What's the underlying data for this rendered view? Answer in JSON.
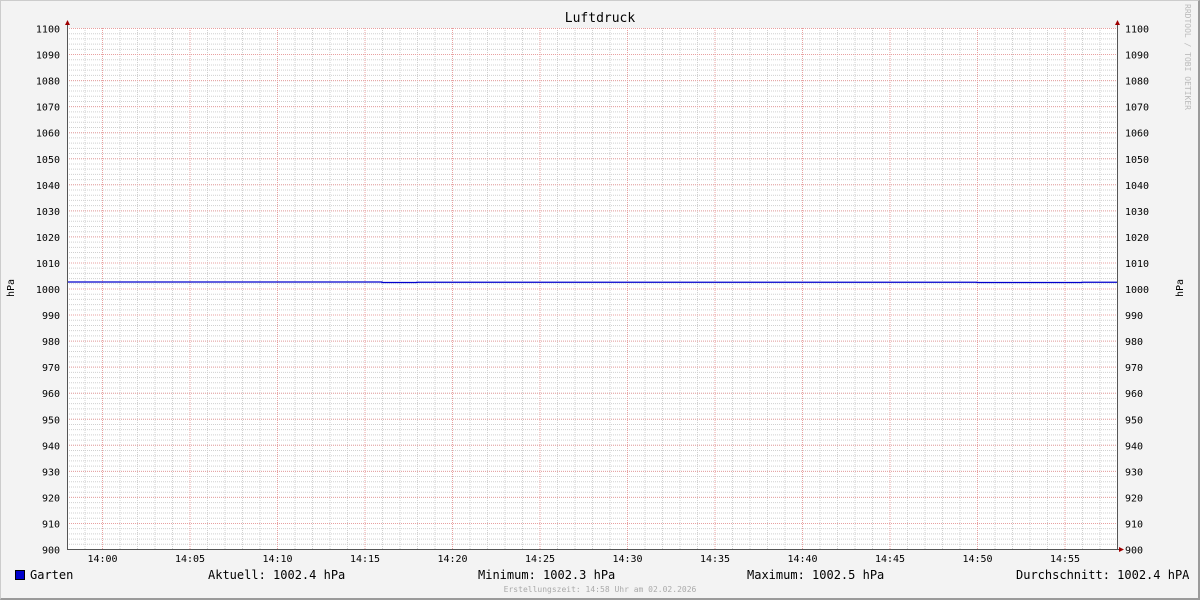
{
  "chart_data": {
    "type": "line",
    "title": "Luftdruck",
    "ylabel": "hPa",
    "ylabel_right": "hPa",
    "ylim": [
      900,
      1100
    ],
    "yticks": [
      900,
      910,
      920,
      930,
      940,
      950,
      960,
      970,
      980,
      990,
      1000,
      1010,
      1020,
      1030,
      1040,
      1050,
      1060,
      1070,
      1080,
      1090,
      1100
    ],
    "xlim": [
      "13:58",
      "14:58"
    ],
    "xticks": [
      "14:00",
      "14:05",
      "14:10",
      "14:15",
      "14:20",
      "14:25",
      "14:30",
      "14:35",
      "14:40",
      "14:45",
      "14:50",
      "14:55"
    ],
    "grid": true,
    "series": [
      {
        "name": "Garten",
        "color": "#0000cc",
        "points": [
          [
            "13:58",
            1002.5
          ],
          [
            "14:16",
            1002.3
          ],
          [
            "14:18",
            1002.4
          ],
          [
            "14:50",
            1002.3
          ],
          [
            "14:56",
            1002.4
          ],
          [
            "14:58",
            1002.4
          ]
        ]
      }
    ]
  },
  "legend": {
    "series_name": "Garten",
    "current": "Aktuell: 1002.4 hPa",
    "minimum": "Minimum: 1002.3 hPa",
    "maximum": "Maximum: 1002.5 hPa",
    "average": "Durchschnitt: 1002.4 hPA"
  },
  "footer": "Erstellungszeit: 14:58 Uhr am 02.02.2026",
  "watermark": "RRDTOOL / TOBI OETIKER"
}
